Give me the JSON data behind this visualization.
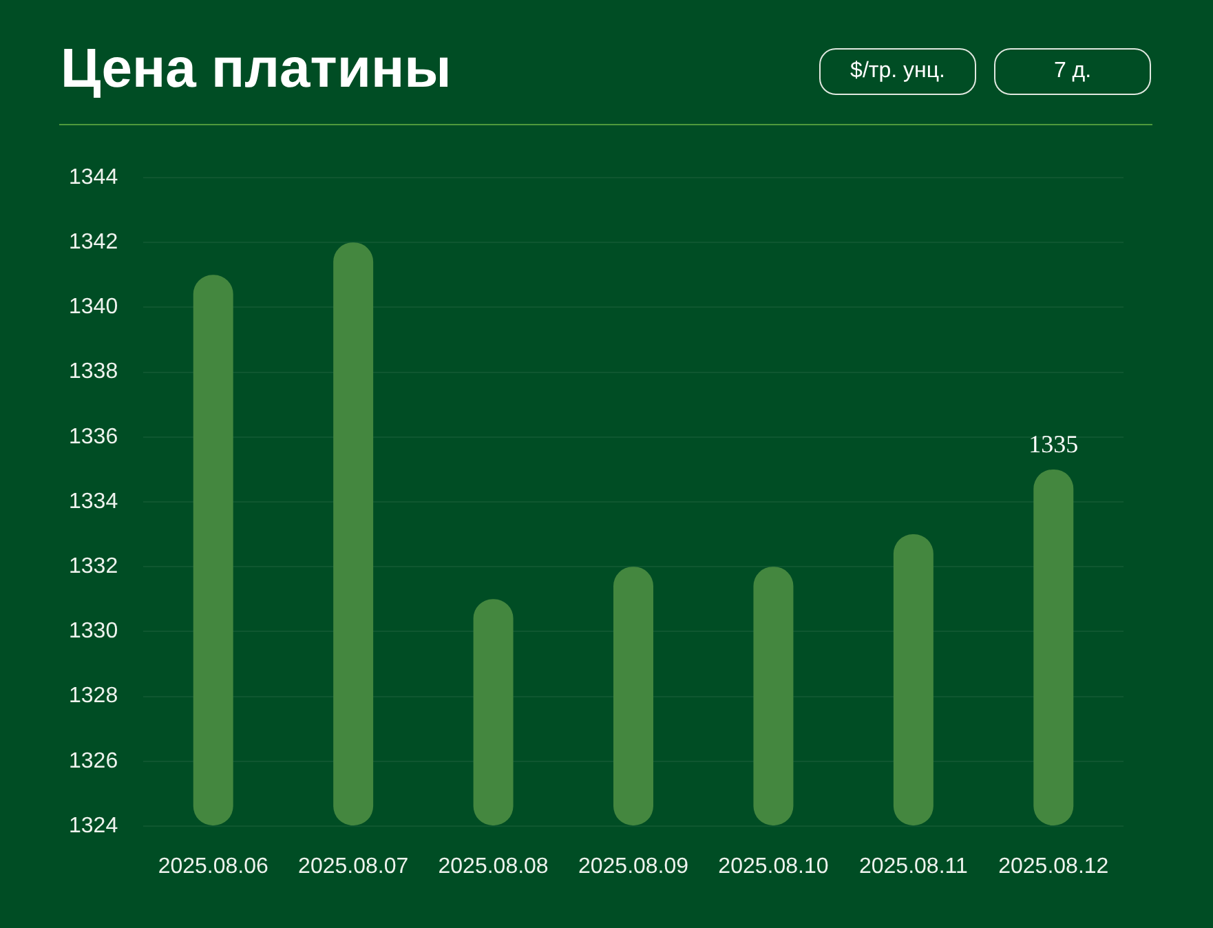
{
  "chart_data": {
    "type": "bar",
    "title": "Цена платины",
    "annotations": [
      "$/тр. унц.",
      "7 д."
    ],
    "categories": [
      "2025.08.06",
      "2025.08.07",
      "2025.08.08",
      "2025.08.09",
      "2025.08.10",
      "2025.08.11",
      "2025.08.12"
    ],
    "values": [
      1341,
      1342,
      1331,
      1332,
      1332,
      1333,
      1335
    ],
    "value_labels": [
      null,
      null,
      null,
      null,
      null,
      null,
      "1335"
    ],
    "color": "#44873f",
    "ylim": [
      1324,
      1344
    ],
    "yticks": [
      1324,
      1326,
      1328,
      1330,
      1332,
      1334,
      1336,
      1338,
      1340,
      1342,
      1344
    ],
    "grid": "y"
  }
}
